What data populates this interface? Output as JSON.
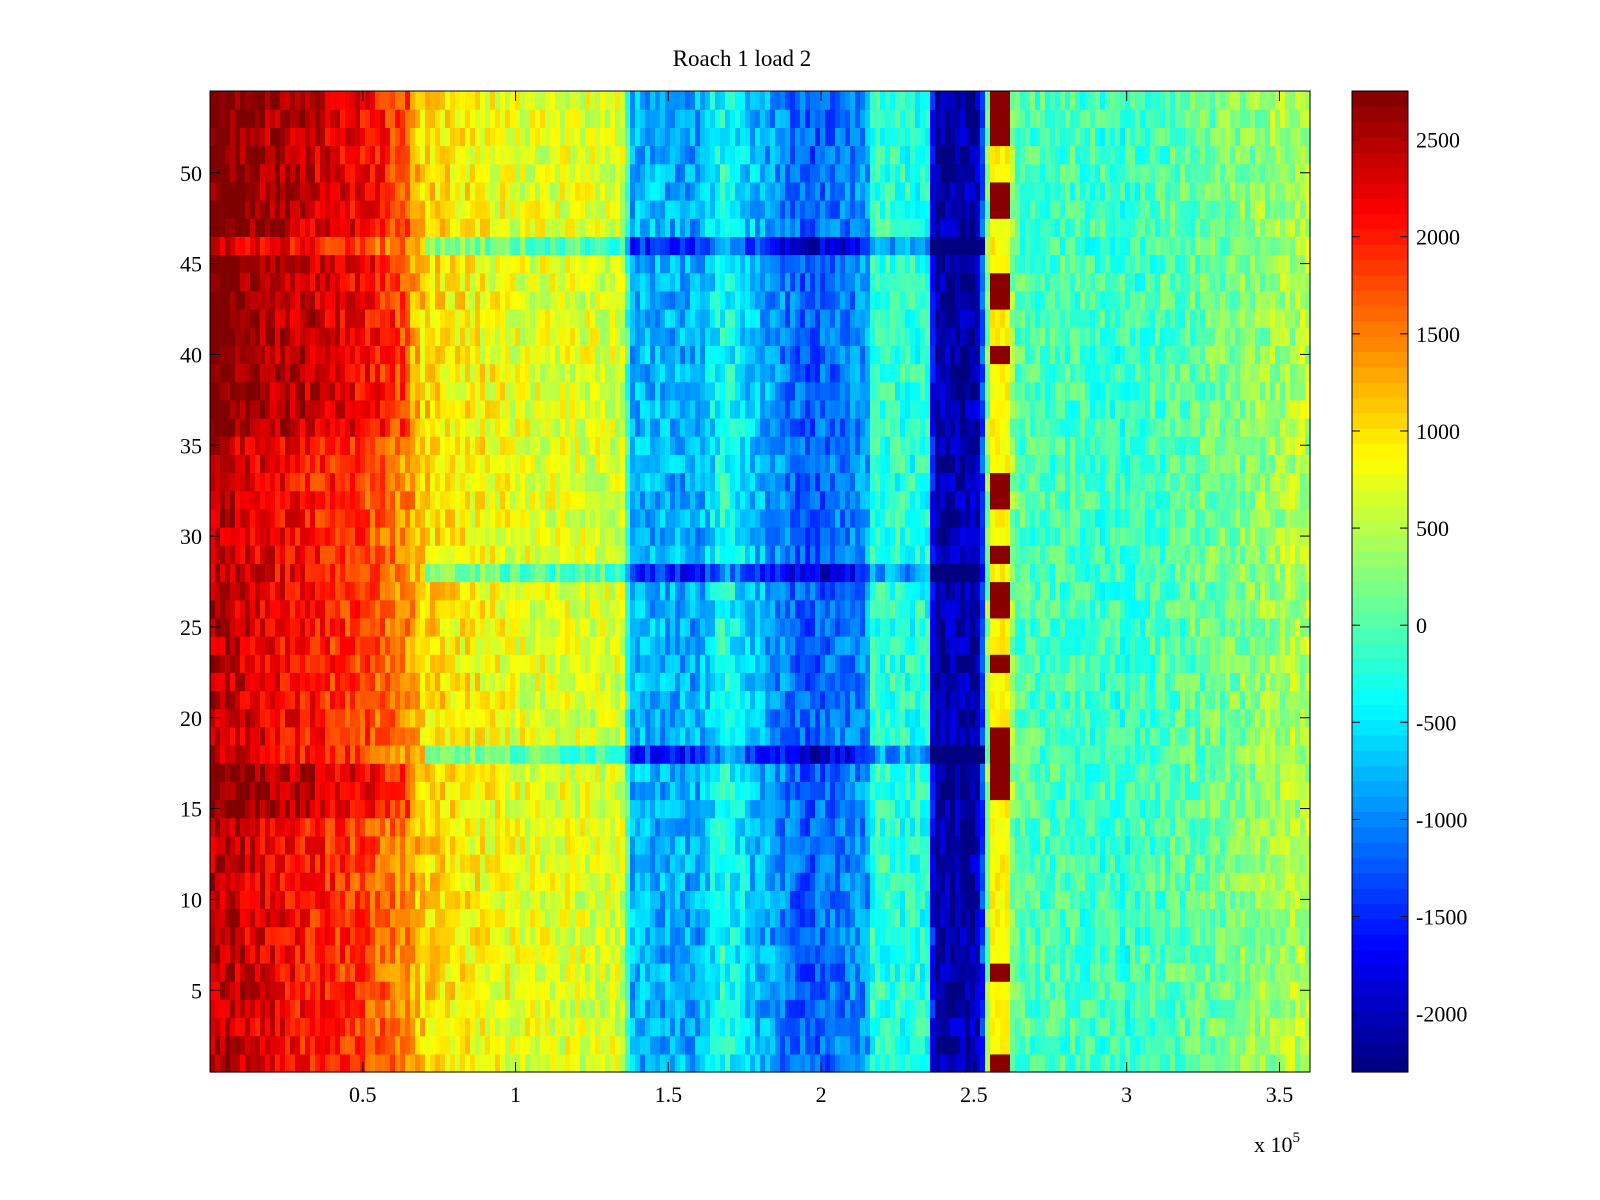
{
  "chart_data": {
    "type": "heatmap",
    "title": "Roach 1 load 2",
    "xlabel": "",
    "ylabel": "",
    "x_exponent_label": "x 10",
    "x_exponent": "5",
    "xlim": [
      0,
      3.6
    ],
    "ylim": [
      0.5,
      54.5
    ],
    "xticks": [
      0.5,
      1,
      1.5,
      2,
      2.5,
      3,
      3.5
    ],
    "xtick_labels": [
      "0.5",
      "1",
      "1.5",
      "2",
      "2.5",
      "3",
      "3.5"
    ],
    "yticks": [
      5,
      10,
      15,
      20,
      25,
      30,
      35,
      40,
      45,
      50
    ],
    "ytick_labels": [
      "5",
      "10",
      "15",
      "20",
      "25",
      "30",
      "35",
      "40",
      "45",
      "50"
    ],
    "rows": 54,
    "colormap": "jet",
    "colorbar": {
      "limits": [
        -2300,
        2750
      ],
      "ticks": [
        -2000,
        -1500,
        -1000,
        -500,
        0,
        500,
        1000,
        1500,
        2000,
        2500
      ],
      "tick_labels": [
        "-2000",
        "-1500",
        "-1000",
        "-500",
        "0",
        "500",
        "1000",
        "1500",
        "2000",
        "2500"
      ]
    },
    "column_profile": [
      {
        "x": 0.0,
        "value": 2500
      },
      {
        "x": 0.3,
        "value": 2050
      },
      {
        "x": 0.5,
        "value": 1800
      },
      {
        "x": 0.65,
        "value": 1400
      },
      {
        "x": 0.7,
        "value": 1050
      },
      {
        "x": 1.0,
        "value": 750
      },
      {
        "x": 1.35,
        "value": 650
      },
      {
        "x": 1.38,
        "value": -750
      },
      {
        "x": 1.6,
        "value": -850
      },
      {
        "x": 1.68,
        "value": -250
      },
      {
        "x": 1.78,
        "value": -700
      },
      {
        "x": 1.95,
        "value": -1250
      },
      {
        "x": 2.15,
        "value": -950
      },
      {
        "x": 2.17,
        "value": -150
      },
      {
        "x": 2.35,
        "value": -250
      },
      {
        "x": 2.37,
        "value": -2150
      },
      {
        "x": 2.52,
        "value": -2050
      },
      {
        "x": 2.54,
        "value": -300
      },
      {
        "x": 2.55,
        "value": 900
      },
      {
        "x": 2.62,
        "value": 900
      },
      {
        "x": 2.63,
        "value": 0
      },
      {
        "x": 3.0,
        "value": -150
      },
      {
        "x": 3.35,
        "value": 200
      },
      {
        "x": 3.6,
        "value": 500
      }
    ],
    "anomalous_rows": [
      18,
      28,
      46
    ],
    "anomaly_offset": -700,
    "high_rows_left_offset": {
      "rows": [
        15,
        16,
        17,
        36,
        37,
        38,
        39,
        40,
        41,
        42,
        43,
        44,
        45,
        47,
        48,
        49,
        50,
        51,
        52,
        53,
        54
      ],
      "value": 350
    },
    "striped_column": {
      "x_range": [
        2.55,
        2.62
      ],
      "high_rows": [
        1,
        6,
        16,
        17,
        18,
        19,
        23,
        26,
        27,
        29,
        32,
        33,
        40,
        43,
        44,
        48,
        49,
        52,
        53,
        54
      ],
      "high_value": 2700
    }
  }
}
